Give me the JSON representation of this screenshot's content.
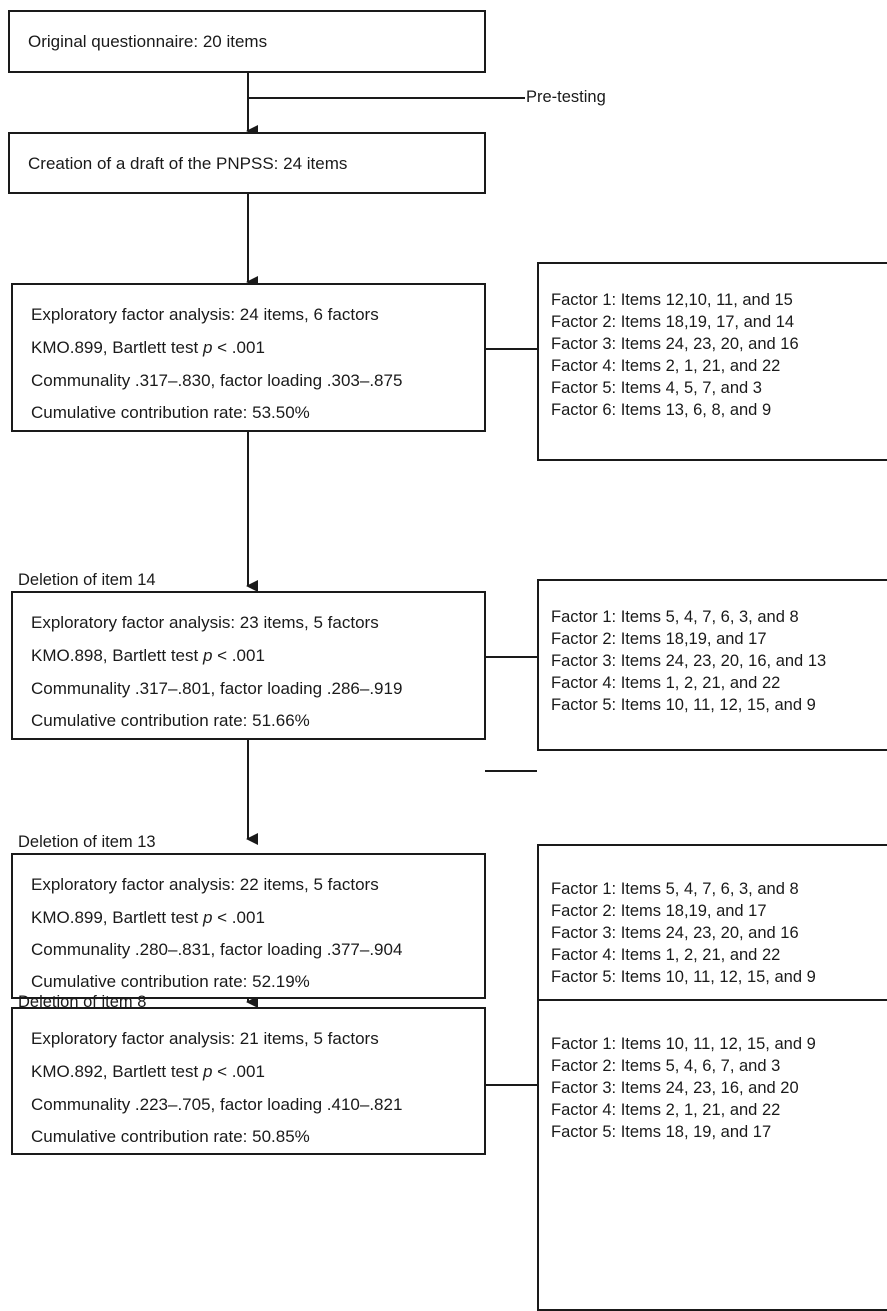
{
  "top_box": {
    "text": "Original questionnaire: 20 items"
  },
  "pretesting_label": "Pre-testing",
  "draft_box": {
    "text": "Creation of a draft of the PNPSS: 24 items"
  },
  "stages": [
    {
      "deletion_label": "",
      "lines": [
        {
          "pre": "Exploratory factor analysis: 24 items, 6 factors"
        },
        {
          "pre": "KMO.899, Bartlett test ",
          "italic": "p",
          "post": " < .001"
        },
        {
          "pre": "Communality .317–.830, factor loading .303–.875"
        },
        {
          "pre": "Cumulative contribution rate: 53.50%"
        }
      ],
      "factors": [
        "Factor 1: Items 12,10, 11, and 15",
        "Factor 2: Items 18,19, 17, and 14",
        "Factor 3: Items 24, 23, 20, and 16",
        "Factor 4: Items 2, 1, 21, and 22",
        "Factor 5: Items 4, 5, 7, and 3",
        "Factor 6: Items 13, 6, 8, and 9"
      ]
    },
    {
      "deletion_label": "Deletion of item 14",
      "lines": [
        {
          "pre": "Exploratory factor analysis: 23 items, 5 factors"
        },
        {
          "pre": "KMO.898, Bartlett test ",
          "italic": "p",
          "post": " < .001"
        },
        {
          "pre": "Communality .317–.801, factor loading .286–.919"
        },
        {
          "pre": "Cumulative contribution rate: 51.66%"
        }
      ],
      "factors": [
        "Factor 1: Items 5, 4, 7, 6, 3, and 8",
        "Factor 2: Items 18,19, and 17",
        "Factor 3: Items 24, 23, 20, 16, and 13",
        "Factor 4: Items 1, 2, 21, and 22",
        "Factor 5: Items 10, 11, 12, 15, and 9"
      ]
    },
    {
      "deletion_label": "Deletion of item 13",
      "lines": [
        {
          "pre": "Exploratory factor analysis: 22 items, 5 factors"
        },
        {
          "pre": "KMO.899, Bartlett test ",
          "italic": "p",
          "post": " < .001"
        },
        {
          "pre": "Communality .280–.831, factor loading .377–.904"
        },
        {
          "pre": "Cumulative contribution rate: 52.19%"
        }
      ],
      "factors": [
        "Factor 1: Items 5, 4, 7, 6, 3, and 8",
        "Factor 2: Items 18,19, and 17",
        "Factor 3: Items 24, 23, 20, and 16",
        "Factor 4: Items 1, 2, 21, and 22",
        "Factor 5: Items 10, 11, 12, 15, and 9"
      ]
    },
    {
      "deletion_label": "Deletion of item 8",
      "lines": [
        {
          "pre": "Exploratory factor analysis: 21 items, 5 factors"
        },
        {
          "pre": "KMO.892, Bartlett test ",
          "italic": "p",
          "post": " < .001"
        },
        {
          "pre": "Communality .223–.705, factor loading .410–.821"
        },
        {
          "pre": "Cumulative contribution rate: 50.85%"
        }
      ],
      "factors": [
        "Factor 1: Items 10, 11, 12, 15, and 9",
        "Factor 2: Items 5, 4, 6, 7, and 3",
        "Factor 3: Items 24, 23, 16, and 20",
        "Factor 4: Items 2, 1, 21, and 22",
        "Factor 5: Items 18, 19, and 17"
      ]
    }
  ]
}
